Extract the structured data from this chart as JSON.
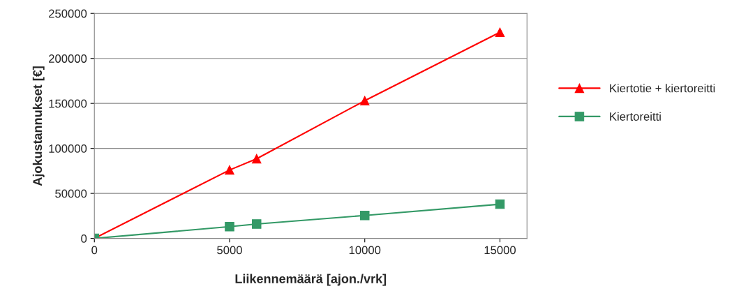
{
  "chart_data": {
    "type": "line",
    "xlabel": "Liikennemäärä [ajon./vrk]",
    "ylabel": "Ajokustannukset [€]",
    "x": [
      0,
      5000,
      6000,
      10000,
      15000
    ],
    "series": [
      {
        "name": "Kiertotie + kiertoreitti",
        "color": "#ff0000",
        "marker": "triangle",
        "values": [
          0,
          76000,
          88500,
          153000,
          229000
        ]
      },
      {
        "name": "Kiertoreitti",
        "color": "#339966",
        "marker": "square",
        "values": [
          0,
          13000,
          16000,
          25500,
          38000
        ]
      }
    ],
    "xlim": [
      0,
      16000
    ],
    "xticks": [
      0,
      5000,
      10000,
      15000
    ],
    "ylim": [
      0,
      250000
    ],
    "yticks": [
      0,
      50000,
      100000,
      150000,
      200000,
      250000
    ],
    "grid": "y",
    "legend": "right"
  }
}
